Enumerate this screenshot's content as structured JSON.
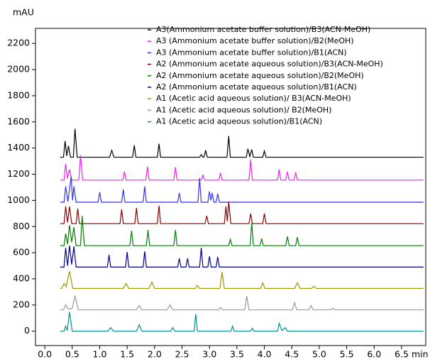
{
  "chart_data": {
    "type": "line",
    "ylabel": "mAU",
    "xlabel": "min",
    "xlim": [
      -0.17,
      6.94
    ],
    "ylim": [
      -110,
      2315
    ],
    "xticks": [
      {
        "value": 0,
        "label": "0.0"
      },
      0.5,
      {
        "value": 1,
        "label": "1.0"
      },
      1.5,
      {
        "value": 2,
        "label": "2.0"
      },
      2.5,
      {
        "value": 3,
        "label": "3.0"
      },
      3.5,
      {
        "value": 4,
        "label": "4.0"
      },
      4.5,
      {
        "value": 5,
        "label": "5.0"
      },
      5.5,
      {
        "value": 6,
        "label": "6.0"
      },
      6.5
    ],
    "yticks": [
      0,
      200,
      400,
      600,
      800,
      1000,
      1200,
      1400,
      1600,
      1800,
      2000,
      2200
    ],
    "legend": "upper right",
    "series": [
      {
        "name": "A3(Ammonium acetate buffer solution)/B3(ACN-MeOH)",
        "color": "#000000",
        "x": [
          0.28,
          0.34,
          0.37,
          0.4,
          0.43,
          0.47,
          0.52,
          0.55,
          0.59,
          1.18,
          1.22,
          1.26,
          1.6,
          1.63,
          1.66,
          2.05,
          2.08,
          2.11,
          2.82,
          2.85,
          2.88,
          2.9,
          2.93,
          2.96,
          3.32,
          3.35,
          3.38,
          3.67,
          3.7,
          3.735,
          3.77,
          3.8,
          3.97,
          4.0,
          4.03,
          6.9
        ],
        "values": [
          1330,
          1330,
          1454,
          1340,
          1416,
          1330,
          1330,
          1547,
          1330,
          1330,
          1383,
          1330,
          1330,
          1421,
          1330,
          1330,
          1432,
          1330,
          1330,
          1350,
          1330,
          1330,
          1383,
          1330,
          1330,
          1492,
          1330,
          1330,
          1394,
          1335,
          1389,
          1330,
          1330,
          1378,
          1330,
          1330
        ]
      },
      {
        "name": "A3 (Ammonium acetate buffer solution)/B2(MeOH)",
        "color": "#ee22ee",
        "x": [
          0.28,
          0.35,
          0.38,
          0.41,
          0.45,
          0.49,
          0.62,
          0.65,
          0.69,
          1.42,
          1.45,
          1.48,
          1.84,
          1.87,
          1.9,
          2.35,
          2.38,
          2.41,
          2.85,
          2.88,
          2.91,
          3.17,
          3.2,
          3.23,
          3.72,
          3.75,
          3.78,
          4.24,
          4.27,
          4.3,
          4.39,
          4.42,
          4.45,
          4.54,
          4.57,
          4.6,
          6.9
        ],
        "values": [
          1155,
          1155,
          1280,
          1170,
          1237,
          1155,
          1155,
          1345,
          1155,
          1155,
          1220,
          1155,
          1155,
          1258,
          1155,
          1155,
          1253,
          1155,
          1155,
          1193,
          1155,
          1155,
          1209,
          1155,
          1155,
          1313,
          1155,
          1155,
          1237,
          1155,
          1155,
          1220,
          1155,
          1155,
          1215,
          1155,
          1155
        ]
      },
      {
        "name": "A3 (Ammonium acetate buffer solution)/B1(ACN)",
        "color": "#3333ee",
        "x": [
          0.28,
          0.35,
          0.38,
          0.42,
          0.48,
          0.505,
          0.53,
          0.57,
          0.97,
          1.0,
          1.03,
          1.4,
          1.43,
          1.46,
          1.79,
          1.82,
          1.85,
          2.42,
          2.45,
          2.48,
          2.79,
          2.82,
          2.85,
          2.97,
          3.0,
          3.025,
          3.05,
          3.08,
          3.12,
          3.15,
          3.18,
          6.9
        ],
        "values": [
          986,
          986,
          1106,
          990,
          1182,
          1000,
          1106,
          986,
          986,
          1062,
          986,
          986,
          1084,
          986,
          986,
          1106,
          986,
          986,
          1057,
          986,
          986,
          1171,
          986,
          986,
          1068,
          1000,
          1057,
          986,
          986,
          1051,
          986,
          986
        ]
      },
      {
        "name": "A2 (Ammonium acetate aqueous solution)/B3(ACN-MeOH)",
        "color": "#8b0000",
        "x": [
          0.28,
          0.35,
          0.38,
          0.415,
          0.45,
          0.49,
          0.57,
          0.6,
          0.63,
          1.37,
          1.4,
          1.43,
          1.64,
          1.67,
          1.7,
          2.05,
          2.08,
          2.11,
          2.92,
          2.95,
          2.98,
          3.27,
          3.3,
          3.325,
          3.35,
          3.39,
          3.72,
          3.75,
          3.78,
          3.97,
          4.0,
          4.03,
          6.9
        ],
        "values": [
          822,
          822,
          953,
          830,
          953,
          822,
          822,
          937,
          822,
          822,
          931,
          822,
          822,
          942,
          822,
          822,
          959,
          822,
          822,
          882,
          822,
          822,
          953,
          840,
          991,
          822,
          822,
          899,
          822,
          822,
          899,
          822,
          822
        ]
      },
      {
        "name": "A2 (Ammonium acetate aqueous solution)/B2(MeOH)",
        "color": "#008000",
        "x": [
          0.28,
          0.35,
          0.38,
          0.415,
          0.45,
          0.49,
          0.53,
          0.57,
          0.65,
          0.68,
          0.72,
          1.55,
          1.58,
          1.61,
          1.85,
          1.88,
          1.91,
          2.35,
          2.38,
          2.41,
          3.35,
          3.38,
          3.41,
          3.74,
          3.77,
          3.8,
          3.92,
          3.95,
          3.98,
          4.39,
          4.42,
          4.45,
          4.57,
          4.6,
          4.63,
          6.9
        ],
        "values": [
          654,
          654,
          746,
          665,
          811,
          680,
          795,
          654,
          654,
          882,
          654,
          654,
          767,
          654,
          654,
          773,
          654,
          654,
          773,
          654,
          654,
          702,
          654,
          654,
          828,
          654,
          654,
          708,
          654,
          654,
          724,
          654,
          654,
          719,
          654,
          654
        ]
      },
      {
        "name": "A2 (Ammonium acetate aqueous solution)/B1(ACN)",
        "color": "#00008b",
        "x": [
          0.28,
          0.35,
          0.38,
          0.415,
          0.45,
          0.49,
          0.53,
          0.57,
          1.14,
          1.17,
          1.2,
          1.47,
          1.5,
          1.53,
          1.79,
          1.82,
          1.85,
          2.42,
          2.45,
          2.48,
          2.57,
          2.6,
          2.63,
          2.82,
          2.85,
          2.88,
          2.97,
          3.0,
          3.03,
          3.12,
          3.15,
          3.18,
          6.9
        ],
        "values": [
          490,
          490,
          637,
          500,
          654,
          510,
          648,
          490,
          490,
          583,
          490,
          490,
          605,
          490,
          490,
          610,
          490,
          490,
          556,
          490,
          490,
          556,
          490,
          490,
          637,
          490,
          490,
          572,
          490,
          490,
          567,
          490,
          490
        ]
      },
      {
        "name": "A1 (Acetic acid aqueous solution)/ B3(ACN-MeOH)",
        "color": "#999900",
        "x": [
          0.28,
          0.31,
          0.35,
          0.39,
          0.45,
          0.51,
          1.43,
          1.48,
          1.53,
          1.9,
          1.95,
          2.0,
          2.74,
          2.78,
          2.82,
          3.19,
          3.23,
          3.27,
          3.93,
          3.97,
          4.01,
          4.55,
          4.6,
          4.65,
          4.86,
          4.9,
          4.94,
          6.9
        ],
        "values": [
          327,
          327,
          365,
          340,
          457,
          327,
          327,
          365,
          327,
          327,
          376,
          327,
          327,
          349,
          327,
          327,
          452,
          327,
          327,
          370,
          327,
          327,
          370,
          327,
          327,
          343,
          327,
          327
        ]
      },
      {
        "name": "A1 (Acetic acid aqueous solution)/ B2(MeOH)",
        "color": "#999999",
        "x": [
          0.28,
          0.34,
          0.38,
          0.43,
          0.5,
          0.55,
          0.61,
          1.67,
          1.72,
          1.77,
          2.23,
          2.28,
          2.33,
          3.16,
          3.2,
          3.24,
          3.64,
          3.68,
          3.72,
          4.51,
          4.55,
          4.59,
          4.81,
          4.85,
          4.89,
          5.21,
          5.25,
          5.29,
          6.9
        ],
        "values": [
          163,
          163,
          201,
          168,
          175,
          272,
          163,
          163,
          196,
          163,
          163,
          201,
          163,
          163,
          180,
          163,
          163,
          267,
          163,
          163,
          218,
          163,
          163,
          196,
          163,
          163,
          174,
          163,
          163
        ]
      },
      {
        "name": "A1 (Acetic acid aqueous solution)/B1(ACN)",
        "color": "#009090",
        "x": [
          0.28,
          0.35,
          0.38,
          0.41,
          0.45,
          0.5,
          1.15,
          1.2,
          1.25,
          1.67,
          1.72,
          1.77,
          2.29,
          2.33,
          2.37,
          2.72,
          2.75,
          2.78,
          3.39,
          3.42,
          3.45,
          3.75,
          3.78,
          3.81,
          4.24,
          4.27,
          4.32,
          4.38,
          4.42,
          6.9
        ],
        "values": [
          0,
          0,
          38,
          5,
          147,
          0,
          0,
          27,
          0,
          0,
          49,
          0,
          0,
          27,
          0,
          0,
          131,
          0,
          0,
          38,
          0,
          0,
          22,
          0,
          0,
          60,
          5,
          27,
          0,
          0
        ]
      }
    ]
  }
}
